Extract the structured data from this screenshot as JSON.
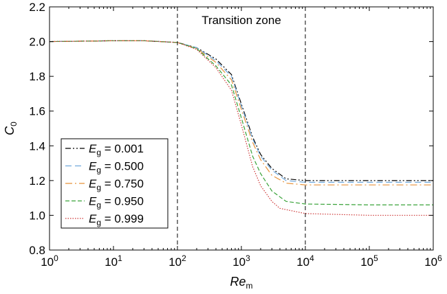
{
  "chart_data": {
    "type": "line",
    "xlabel": "Re",
    "xlabel_sub": "m",
    "ylabel": "C",
    "ylabel_sub": "0",
    "x_scale": "log10",
    "xlim": [
      1,
      1000000
    ],
    "ylim": [
      0.8,
      2.2
    ],
    "x_ticks": [
      {
        "value": 1,
        "base": "10",
        "exp": "0"
      },
      {
        "value": 10,
        "base": "10",
        "exp": "1"
      },
      {
        "value": 100,
        "base": "10",
        "exp": "2"
      },
      {
        "value": 1000,
        "base": "10",
        "exp": "3"
      },
      {
        "value": 10000,
        "base": "10",
        "exp": "4"
      },
      {
        "value": 100000,
        "base": "10",
        "exp": "5"
      },
      {
        "value": 1000000,
        "base": "10",
        "exp": "6"
      }
    ],
    "y_ticks": [
      "0.8",
      "1.0",
      "1.2",
      "1.4",
      "1.6",
      "1.8",
      "2.0",
      "2.2"
    ],
    "grid": false,
    "legend_position": "lower-left",
    "annotations": [
      {
        "text": "Transition zone"
      }
    ],
    "vlines": [
      100,
      10000
    ],
    "series": [
      {
        "name": "0.001",
        "color": "#000000",
        "dash": "8,3,2,3,2,3",
        "x": [
          1,
          10,
          30,
          100,
          200,
          400,
          700,
          1000,
          1500,
          2000,
          3000,
          5000,
          10000,
          100000,
          1000000
        ],
        "y": [
          2.0,
          2.005,
          2.005,
          1.995,
          1.965,
          1.9,
          1.81,
          1.64,
          1.45,
          1.35,
          1.27,
          1.21,
          1.2,
          1.2,
          1.2
        ]
      },
      {
        "name": "0.500",
        "color": "#6fa8dc",
        "dash": "9,5",
        "x": [
          1,
          10,
          30,
          100,
          200,
          400,
          700,
          1000,
          1500,
          2000,
          3000,
          5000,
          10000,
          100000,
          1000000
        ],
        "y": [
          2.0,
          2.005,
          2.005,
          1.995,
          1.965,
          1.89,
          1.8,
          1.63,
          1.44,
          1.34,
          1.26,
          1.2,
          1.19,
          1.19,
          1.19
        ]
      },
      {
        "name": "0.750",
        "color": "#e69138",
        "dash": "10,4,2,4",
        "x": [
          1,
          10,
          30,
          100,
          200,
          400,
          700,
          1000,
          1500,
          2000,
          3000,
          5000,
          10000,
          100000,
          1000000
        ],
        "y": [
          2.0,
          2.005,
          2.005,
          1.995,
          1.96,
          1.88,
          1.78,
          1.61,
          1.42,
          1.32,
          1.23,
          1.185,
          1.175,
          1.175,
          1.175
        ]
      },
      {
        "name": "0.950",
        "color": "#38a238",
        "dash": "6,3",
        "x": [
          1,
          10,
          30,
          100,
          200,
          400,
          700,
          1000,
          1500,
          2000,
          3000,
          5000,
          10000,
          100000,
          1000000
        ],
        "y": [
          2.0,
          2.005,
          2.005,
          1.995,
          1.96,
          1.86,
          1.75,
          1.56,
          1.34,
          1.24,
          1.14,
          1.08,
          1.065,
          1.06,
          1.06
        ]
      },
      {
        "name": "0.999",
        "color": "#cc3333",
        "dash": "1.5,2",
        "x": [
          1,
          10,
          30,
          100,
          200,
          400,
          700,
          1000,
          1500,
          2000,
          3000,
          4000,
          10000,
          100000,
          1000000
        ],
        "y": [
          2.0,
          2.005,
          2.005,
          1.995,
          1.955,
          1.85,
          1.72,
          1.52,
          1.28,
          1.17,
          1.08,
          1.04,
          1.01,
          1.0,
          1.0
        ]
      }
    ],
    "legend_prefix": "E",
    "legend_prefix_sub": "g",
    "legend_eq": " = "
  }
}
